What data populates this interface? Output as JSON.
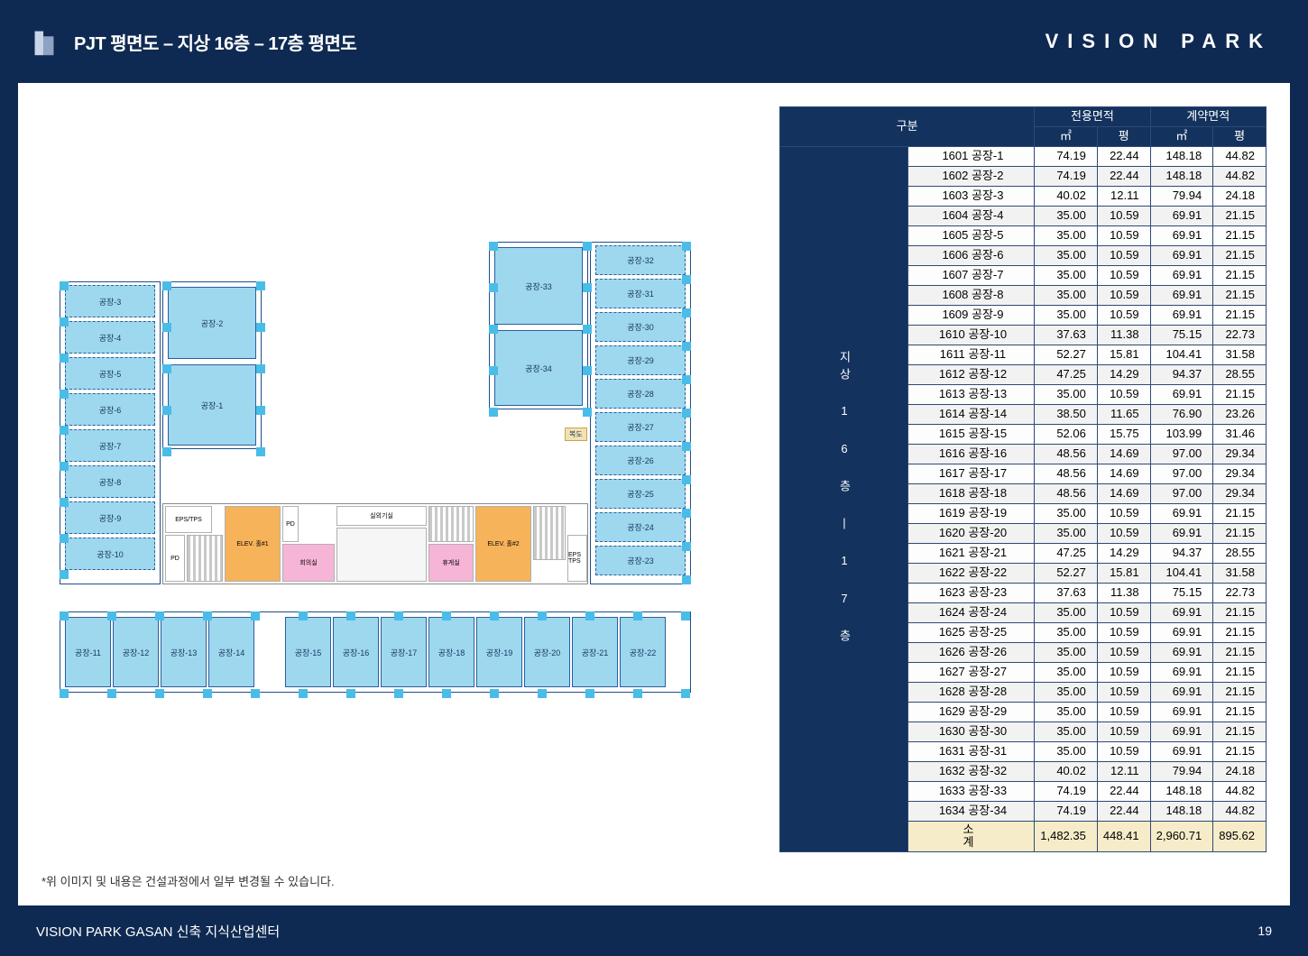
{
  "header": {
    "title": "PJT 평면도 – 지상 16층 – 17층 평면도",
    "brand": "VISION PARK"
  },
  "footer": {
    "left": "VISION PARK GASAN 신축 지식산업센터",
    "page": "19"
  },
  "disclaimer": "*위 이미지 및 내용은 건설과정에서 일부 변경될 수 있습니다.",
  "table": {
    "head": {
      "group": "구분",
      "area1": "전용면적",
      "area2": "계약면적",
      "m2": "㎡",
      "py": "평"
    },
    "rowhead": "지상 1 6 층 | 1 7 층",
    "rows": [
      {
        "name": "1601 공장-1",
        "a": "74.19",
        "b": "22.44",
        "c": "148.18",
        "d": "44.82"
      },
      {
        "name": "1602 공장-2",
        "a": "74.19",
        "b": "22.44",
        "c": "148.18",
        "d": "44.82"
      },
      {
        "name": "1603 공장-3",
        "a": "40.02",
        "b": "12.11",
        "c": "79.94",
        "d": "24.18"
      },
      {
        "name": "1604 공장-4",
        "a": "35.00",
        "b": "10.59",
        "c": "69.91",
        "d": "21.15"
      },
      {
        "name": "1605 공장-5",
        "a": "35.00",
        "b": "10.59",
        "c": "69.91",
        "d": "21.15"
      },
      {
        "name": "1606 공장-6",
        "a": "35.00",
        "b": "10.59",
        "c": "69.91",
        "d": "21.15"
      },
      {
        "name": "1607 공장-7",
        "a": "35.00",
        "b": "10.59",
        "c": "69.91",
        "d": "21.15"
      },
      {
        "name": "1608 공장-8",
        "a": "35.00",
        "b": "10.59",
        "c": "69.91",
        "d": "21.15"
      },
      {
        "name": "1609 공장-9",
        "a": "35.00",
        "b": "10.59",
        "c": "69.91",
        "d": "21.15"
      },
      {
        "name": "1610 공장-10",
        "a": "37.63",
        "b": "11.38",
        "c": "75.15",
        "d": "22.73"
      },
      {
        "name": "1611 공장-11",
        "a": "52.27",
        "b": "15.81",
        "c": "104.41",
        "d": "31.58"
      },
      {
        "name": "1612 공장-12",
        "a": "47.25",
        "b": "14.29",
        "c": "94.37",
        "d": "28.55"
      },
      {
        "name": "1613 공장-13",
        "a": "35.00",
        "b": "10.59",
        "c": "69.91",
        "d": "21.15"
      },
      {
        "name": "1614 공장-14",
        "a": "38.50",
        "b": "11.65",
        "c": "76.90",
        "d": "23.26"
      },
      {
        "name": "1615 공장-15",
        "a": "52.06",
        "b": "15.75",
        "c": "103.99",
        "d": "31.46"
      },
      {
        "name": "1616 공장-16",
        "a": "48.56",
        "b": "14.69",
        "c": "97.00",
        "d": "29.34"
      },
      {
        "name": "1617 공장-17",
        "a": "48.56",
        "b": "14.69",
        "c": "97.00",
        "d": "29.34"
      },
      {
        "name": "1618 공장-18",
        "a": "48.56",
        "b": "14.69",
        "c": "97.00",
        "d": "29.34"
      },
      {
        "name": "1619 공장-19",
        "a": "35.00",
        "b": "10.59",
        "c": "69.91",
        "d": "21.15"
      },
      {
        "name": "1620 공장-20",
        "a": "35.00",
        "b": "10.59",
        "c": "69.91",
        "d": "21.15"
      },
      {
        "name": "1621 공장-21",
        "a": "47.25",
        "b": "14.29",
        "c": "94.37",
        "d": "28.55"
      },
      {
        "name": "1622 공장-22",
        "a": "52.27",
        "b": "15.81",
        "c": "104.41",
        "d": "31.58"
      },
      {
        "name": "1623 공장-23",
        "a": "37.63",
        "b": "11.38",
        "c": "75.15",
        "d": "22.73"
      },
      {
        "name": "1624 공장-24",
        "a": "35.00",
        "b": "10.59",
        "c": "69.91",
        "d": "21.15"
      },
      {
        "name": "1625 공장-25",
        "a": "35.00",
        "b": "10.59",
        "c": "69.91",
        "d": "21.15"
      },
      {
        "name": "1626 공장-26",
        "a": "35.00",
        "b": "10.59",
        "c": "69.91",
        "d": "21.15"
      },
      {
        "name": "1627 공장-27",
        "a": "35.00",
        "b": "10.59",
        "c": "69.91",
        "d": "21.15"
      },
      {
        "name": "1628 공장-28",
        "a": "35.00",
        "b": "10.59",
        "c": "69.91",
        "d": "21.15"
      },
      {
        "name": "1629 공장-29",
        "a": "35.00",
        "b": "10.59",
        "c": "69.91",
        "d": "21.15"
      },
      {
        "name": "1630 공장-30",
        "a": "35.00",
        "b": "10.59",
        "c": "69.91",
        "d": "21.15"
      },
      {
        "name": "1631 공장-31",
        "a": "35.00",
        "b": "10.59",
        "c": "69.91",
        "d": "21.15"
      },
      {
        "name": "1632 공장-32",
        "a": "40.02",
        "b": "12.11",
        "c": "79.94",
        "d": "24.18"
      },
      {
        "name": "1633 공장-33",
        "a": "74.19",
        "b": "22.44",
        "c": "148.18",
        "d": "44.82"
      },
      {
        "name": "1634 공장-34",
        "a": "74.19",
        "b": "22.44",
        "c": "148.18",
        "d": "44.82"
      }
    ],
    "subtotal": {
      "label": "소 계",
      "a": "1,482.35",
      "b": "448.41",
      "c": "2,960.71",
      "d": "895.62"
    }
  },
  "plan": {
    "colors": {
      "unit_fill": "#9ed8ef",
      "outline": "#1c4f8f",
      "column": "#49bde8",
      "elevator": "#f7b35a",
      "room": "#f6b5d6",
      "corridor_label": "복도"
    },
    "core_labels": {
      "eps": "EPS/TPS",
      "pd1": "PD",
      "pd2": "PD",
      "elev1": "ELEV. 홀#1",
      "elev2": "ELEV. 홀#2",
      "meeting": "회의실",
      "lounge": "휴게실",
      "fire": "실외기실",
      "eps2": "EPS TPS"
    },
    "left_wing": [
      "공장-3",
      "공장-4",
      "공장-5",
      "공장-6",
      "공장-7",
      "공장-8",
      "공장-9",
      "공장-10"
    ],
    "left_big": [
      "공장-2",
      "공장-1"
    ],
    "right_wing": [
      "공장-32",
      "공장-31",
      "공장-30",
      "공장-29",
      "공장-28",
      "공장-27",
      "공장-26",
      "공장-25",
      "공장-24",
      "공장-23"
    ],
    "right_big": [
      "공장-33",
      "공장-34"
    ],
    "bottom_row": [
      "공장-11",
      "공장-12",
      "공장-13",
      "공장-14",
      "",
      "공장-15",
      "공장-16",
      "공장-17",
      "공장-18",
      "공장-19",
      "공장-20",
      "공장-21",
      "공장-22"
    ]
  }
}
